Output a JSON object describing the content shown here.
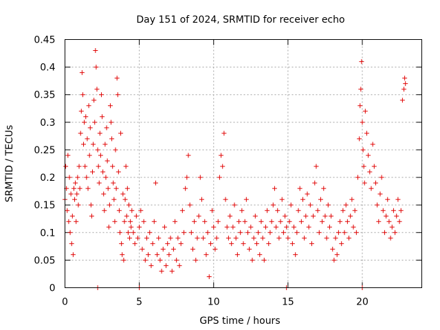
{
  "chart_data": {
    "type": "scatter",
    "title": "Day 151 of 2024, SRMTID for receiver echo",
    "xlabel": "GPS time / hours",
    "ylabel": "SRMTID / TECUs",
    "xlim": [
      0,
      24
    ],
    "ylim": [
      0,
      0.45
    ],
    "xticks": [
      0,
      5,
      10,
      15,
      20
    ],
    "xtick_labels": [
      "0",
      "5",
      "10",
      "15",
      "20"
    ],
    "yticks": [
      0,
      0.05,
      0.1,
      0.15,
      0.2,
      0.25,
      0.3,
      0.35,
      0.4,
      0.45
    ],
    "ytick_labels": [
      "0",
      "0.05",
      "0.1",
      "0.15",
      "0.2",
      "0.25",
      "0.3",
      "0.35",
      "0.4",
      "0.45"
    ],
    "grid": true,
    "marker": "plus",
    "color": "#e00000",
    "series": [
      {
        "name": "receiver echo",
        "points": [
          [
            0.0,
            0.16
          ],
          [
            0.05,
            0.22
          ],
          [
            0.1,
            0.18
          ],
          [
            0.15,
            0.14
          ],
          [
            0.2,
            0.24
          ],
          [
            0.25,
            0.12
          ],
          [
            0.3,
            0.2
          ],
          [
            0.35,
            0.1
          ],
          [
            0.4,
            0.17
          ],
          [
            0.45,
            0.08
          ],
          [
            0.5,
            0.13
          ],
          [
            0.55,
            0.06
          ],
          [
            0.6,
            0.18
          ],
          [
            0.65,
            0.16
          ],
          [
            0.7,
            0.19
          ],
          [
            0.75,
            0.12
          ],
          [
            0.8,
            0.17
          ],
          [
            0.85,
            0.2
          ],
          [
            0.9,
            0.15
          ],
          [
            0.95,
            0.22
          ],
          [
            1.0,
            0.18
          ],
          [
            1.05,
            0.28
          ],
          [
            1.1,
            0.32
          ],
          [
            1.15,
            0.39
          ],
          [
            1.2,
            0.35
          ],
          [
            1.25,
            0.26
          ],
          [
            1.3,
            0.3
          ],
          [
            1.35,
            0.22
          ],
          [
            1.4,
            0.31
          ],
          [
            1.45,
            0.2
          ],
          [
            1.5,
            0.27
          ],
          [
            1.55,
            0.18
          ],
          [
            1.6,
            0.33
          ],
          [
            1.65,
            0.24
          ],
          [
            1.7,
            0.29
          ],
          [
            1.75,
            0.15
          ],
          [
            1.8,
            0.13
          ],
          [
            1.85,
            0.21
          ],
          [
            1.9,
            0.26
          ],
          [
            1.95,
            0.34
          ],
          [
            2.0,
            0.3
          ],
          [
            2.05,
            0.43
          ],
          [
            2.1,
            0.4
          ],
          [
            2.15,
            0.36
          ],
          [
            2.2,
            0.25
          ],
          [
            2.25,
            0.22
          ],
          [
            2.3,
            0.19
          ],
          [
            2.35,
            0.28
          ],
          [
            2.4,
            0.24
          ],
          [
            2.45,
            0.35
          ],
          [
            2.5,
            0.31
          ],
          [
            2.55,
            0.21
          ],
          [
            2.6,
            0.17
          ],
          [
            2.65,
            0.14
          ],
          [
            2.7,
            0.26
          ],
          [
            2.75,
            0.2
          ],
          [
            2.8,
            0.29
          ],
          [
            2.85,
            0.23
          ],
          [
            2.9,
            0.18
          ],
          [
            2.95,
            0.11
          ],
          [
            3.0,
            0.15
          ],
          [
            3.05,
            0.33
          ],
          [
            3.1,
            0.3
          ],
          [
            3.15,
            0.27
          ],
          [
            3.2,
            0.22
          ],
          [
            3.25,
            0.19
          ],
          [
            3.3,
            0.16
          ],
          [
            3.35,
            0.12
          ],
          [
            3.4,
            0.25
          ],
          [
            3.45,
            0.18
          ],
          [
            3.5,
            0.38
          ],
          [
            3.55,
            0.35
          ],
          [
            3.6,
            0.21
          ],
          [
            3.65,
            0.14
          ],
          [
            3.7,
            0.1
          ],
          [
            3.75,
            0.28
          ],
          [
            3.8,
            0.08
          ],
          [
            3.85,
            0.06
          ],
          [
            3.9,
            0.17
          ],
          [
            3.95,
            0.05
          ],
          [
            4.0,
            0.12
          ],
          [
            4.05,
            0.16
          ],
          [
            4.1,
            0.22
          ],
          [
            4.15,
            0.13
          ],
          [
            4.2,
            0.18
          ],
          [
            4.25,
            0.1
          ],
          [
            4.3,
            0.15
          ],
          [
            4.35,
            0.09
          ],
          [
            4.4,
            0.12
          ],
          [
            4.45,
            0.11
          ],
          [
            4.5,
            0.14
          ],
          [
            4.6,
            0.1
          ],
          [
            4.7,
            0.08
          ],
          [
            4.8,
            0.13
          ],
          [
            4.9,
            0.09
          ],
          [
            5.0,
            0.11
          ],
          [
            5.1,
            0.14
          ],
          [
            5.2,
            0.07
          ],
          [
            5.3,
            0.12
          ],
          [
            5.4,
            0.05
          ],
          [
            5.5,
            0.09
          ],
          [
            5.6,
            0.06
          ],
          [
            5.7,
            0.1
          ],
          [
            5.8,
            0.04
          ],
          [
            5.9,
            0.08
          ],
          [
            6.0,
            0.12
          ],
          [
            6.1,
            0.19
          ],
          [
            6.2,
            0.06
          ],
          [
            6.3,
            0.09
          ],
          [
            6.4,
            0.05
          ],
          [
            6.5,
            0.03
          ],
          [
            6.6,
            0.07
          ],
          [
            6.7,
            0.11
          ],
          [
            6.8,
            0.04
          ],
          [
            6.9,
            0.08
          ],
          [
            7.0,
            0.06
          ],
          [
            7.1,
            0.09
          ],
          [
            7.2,
            0.03
          ],
          [
            7.3,
            0.07
          ],
          [
            7.4,
            0.12
          ],
          [
            7.5,
            0.05
          ],
          [
            7.6,
            0.09
          ],
          [
            7.7,
            0.04
          ],
          [
            7.8,
            0.08
          ],
          [
            7.9,
            0.14
          ],
          [
            8.0,
            0.1
          ],
          [
            8.1,
            0.18
          ],
          [
            8.2,
            0.2
          ],
          [
            8.3,
            0.24
          ],
          [
            8.4,
            0.15
          ],
          [
            8.5,
            0.1
          ],
          [
            8.6,
            0.07
          ],
          [
            8.7,
            0.12
          ],
          [
            8.8,
            0.05
          ],
          [
            8.9,
            0.09
          ],
          [
            9.0,
            0.13
          ],
          [
            9.1,
            0.2
          ],
          [
            9.2,
            0.16
          ],
          [
            9.3,
            0.09
          ],
          [
            9.4,
            0.12
          ],
          [
            9.5,
            0.06
          ],
          [
            9.6,
            0.1
          ],
          [
            9.7,
            0.02
          ],
          [
            9.8,
            0.08
          ],
          [
            9.9,
            0.14
          ],
          [
            10.0,
            0.11
          ],
          [
            10.1,
            0.07
          ],
          [
            10.2,
            0.09
          ],
          [
            10.3,
            0.12
          ],
          [
            10.4,
            0.2
          ],
          [
            10.5,
            0.24
          ],
          [
            10.6,
            0.22
          ],
          [
            10.7,
            0.28
          ],
          [
            10.8,
            0.16
          ],
          [
            10.9,
            0.11
          ],
          [
            11.0,
            0.09
          ],
          [
            11.1,
            0.13
          ],
          [
            11.2,
            0.08
          ],
          [
            11.3,
            0.11
          ],
          [
            11.4,
            0.15
          ],
          [
            11.5,
            0.09
          ],
          [
            11.6,
            0.06
          ],
          [
            11.7,
            0.12
          ],
          [
            11.8,
            0.1
          ],
          [
            11.9,
            0.14
          ],
          [
            12.0,
            0.08
          ],
          [
            12.1,
            0.12
          ],
          [
            12.2,
            0.16
          ],
          [
            12.3,
            0.1
          ],
          [
            12.4,
            0.07
          ],
          [
            12.5,
            0.11
          ],
          [
            12.6,
            0.05
          ],
          [
            12.7,
            0.09
          ],
          [
            12.8,
            0.13
          ],
          [
            12.9,
            0.08
          ],
          [
            13.0,
            0.1
          ],
          [
            13.1,
            0.06
          ],
          [
            13.2,
            0.12
          ],
          [
            13.3,
            0.09
          ],
          [
            13.4,
            0.05
          ],
          [
            13.5,
            0.11
          ],
          [
            13.6,
            0.14
          ],
          [
            13.7,
            0.08
          ],
          [
            13.8,
            0.1
          ],
          [
            13.9,
            0.12
          ],
          [
            14.0,
            0.15
          ],
          [
            14.1,
            0.18
          ],
          [
            14.2,
            0.11
          ],
          [
            14.3,
            0.14
          ],
          [
            14.4,
            0.09
          ],
          [
            14.5,
            0.12
          ],
          [
            14.6,
            0.16
          ],
          [
            14.7,
            0.1
          ],
          [
            14.8,
            0.13
          ],
          [
            14.9,
            0.11
          ],
          [
            15.0,
            0.09
          ],
          [
            15.1,
            0.12
          ],
          [
            15.2,
            0.15
          ],
          [
            15.3,
            0.08
          ],
          [
            15.4,
            0.11
          ],
          [
            15.5,
            0.06
          ],
          [
            15.6,
            0.1
          ],
          [
            15.7,
            0.14
          ],
          [
            15.8,
            0.18
          ],
          [
            15.9,
            0.12
          ],
          [
            16.0,
            0.16
          ],
          [
            16.1,
            0.09
          ],
          [
            16.2,
            0.13
          ],
          [
            16.3,
            0.17
          ],
          [
            16.4,
            0.11
          ],
          [
            16.5,
            0.15
          ],
          [
            16.6,
            0.08
          ],
          [
            16.7,
            0.13
          ],
          [
            16.8,
            0.19
          ],
          [
            16.9,
            0.22
          ],
          [
            17.0,
            0.14
          ],
          [
            17.1,
            0.1
          ],
          [
            17.2,
            0.16
          ],
          [
            17.3,
            0.12
          ],
          [
            17.4,
            0.18
          ],
          [
            17.5,
            0.13
          ],
          [
            17.6,
            0.09
          ],
          [
            17.7,
            0.15
          ],
          [
            17.8,
            0.11
          ],
          [
            17.9,
            0.13
          ],
          [
            18.0,
            0.07
          ],
          [
            18.1,
            0.05
          ],
          [
            18.2,
            0.09
          ],
          [
            18.3,
            0.06
          ],
          [
            18.4,
            0.1
          ],
          [
            18.5,
            0.12
          ],
          [
            18.6,
            0.08
          ],
          [
            18.7,
            0.14
          ],
          [
            18.8,
            0.1
          ],
          [
            18.9,
            0.15
          ],
          [
            19.0,
            0.12
          ],
          [
            19.1,
            0.09
          ],
          [
            19.2,
            0.13
          ],
          [
            19.3,
            0.16
          ],
          [
            19.4,
            0.11
          ],
          [
            19.5,
            0.14
          ],
          [
            19.6,
            0.1
          ],
          [
            19.7,
            0.2
          ],
          [
            19.8,
            0.27
          ],
          [
            19.85,
            0.33
          ],
          [
            19.9,
            0.36
          ],
          [
            19.95,
            0.41
          ],
          [
            20.0,
            0.3
          ],
          [
            20.05,
            0.25
          ],
          [
            20.1,
            0.22
          ],
          [
            20.15,
            0.19
          ],
          [
            20.2,
            0.32
          ],
          [
            20.3,
            0.28
          ],
          [
            20.4,
            0.24
          ],
          [
            20.5,
            0.21
          ],
          [
            20.6,
            0.18
          ],
          [
            20.7,
            0.26
          ],
          [
            20.8,
            0.22
          ],
          [
            20.9,
            0.19
          ],
          [
            21.0,
            0.15
          ],
          [
            21.1,
            0.12
          ],
          [
            21.2,
            0.17
          ],
          [
            21.3,
            0.2
          ],
          [
            21.4,
            0.14
          ],
          [
            21.5,
            0.1
          ],
          [
            21.6,
            0.13
          ],
          [
            21.7,
            0.16
          ],
          [
            21.8,
            0.12
          ],
          [
            21.9,
            0.09
          ],
          [
            22.0,
            0.11
          ],
          [
            22.1,
            0.14
          ],
          [
            22.2,
            0.1
          ],
          [
            22.3,
            0.13
          ],
          [
            22.4,
            0.16
          ],
          [
            22.5,
            0.12
          ],
          [
            22.6,
            0.14
          ],
          [
            22.7,
            0.34
          ],
          [
            22.8,
            0.36
          ],
          [
            22.85,
            0.38
          ],
          [
            22.9,
            0.37
          ]
        ]
      }
    ],
    "zero_marks_x": [
      2.2,
      5.0,
      14.9,
      20.0
    ]
  }
}
